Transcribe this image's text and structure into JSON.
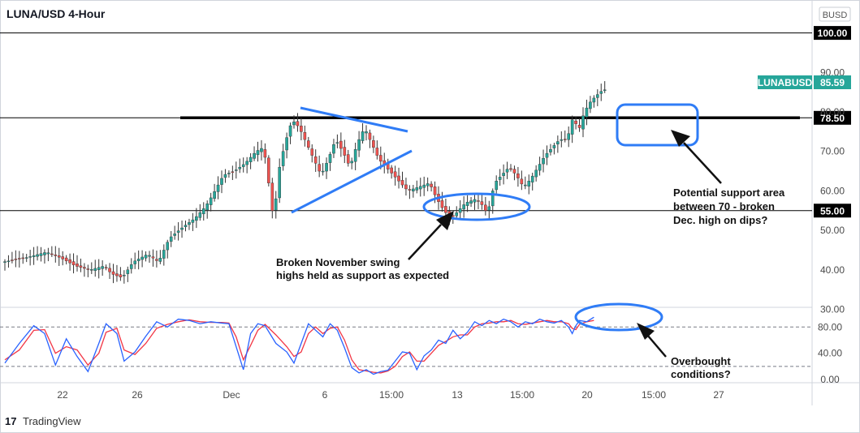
{
  "chart_data": {
    "type": "candlestick",
    "title": "LUNA/USD 4-Hour",
    "currency": "BUSD",
    "ticker": "LUNABUSD",
    "last_price": "85.59",
    "price_axis": {
      "ticks": [
        "100.00",
        "90.00",
        "80.00",
        "70.00",
        "60.00",
        "50.00",
        "40.00",
        "30.00"
      ],
      "ylim": [
        28,
        104
      ]
    },
    "time_axis": {
      "ticks": [
        "22",
        "26",
        "Dec",
        "6",
        "15:00",
        "13",
        "15:00",
        "20",
        "15:00",
        "27"
      ]
    },
    "levels": [
      {
        "value": 100,
        "label": "100.00",
        "label_color": "#000000"
      },
      {
        "value": 78.5,
        "label": "78.50",
        "label_color": "#000000"
      },
      {
        "value": 55,
        "label": "55.00",
        "label_color": "#000000"
      }
    ],
    "price_path": [
      [
        0,
        42
      ],
      [
        6,
        43
      ],
      [
        12,
        44.5
      ],
      [
        16,
        43
      ],
      [
        20,
        41
      ],
      [
        24,
        40
      ],
      [
        28,
        41
      ],
      [
        30,
        39
      ],
      [
        33,
        38
      ],
      [
        36,
        42
      ],
      [
        40,
        44
      ],
      [
        43,
        42
      ],
      [
        46,
        48
      ],
      [
        50,
        51
      ],
      [
        53,
        53
      ],
      [
        56,
        56
      ],
      [
        58,
        59
      ],
      [
        61,
        64
      ],
      [
        64,
        65
      ],
      [
        67,
        67
      ],
      [
        70,
        70
      ],
      [
        72,
        71
      ],
      [
        73,
        66
      ],
      [
        74,
        58
      ],
      [
        75,
        52
      ],
      [
        76,
        64
      ],
      [
        78,
        72
      ],
      [
        80,
        78
      ],
      [
        82,
        76
      ],
      [
        84,
        72
      ],
      [
        86,
        68
      ],
      [
        88,
        64
      ],
      [
        90,
        68
      ],
      [
        92,
        73
      ],
      [
        94,
        70
      ],
      [
        96,
        66
      ],
      [
        98,
        72
      ],
      [
        100,
        76
      ],
      [
        102,
        72
      ],
      [
        104,
        68
      ],
      [
        106,
        66
      ],
      [
        108,
        64
      ],
      [
        110,
        62
      ],
      [
        112,
        60
      ],
      [
        115,
        61
      ],
      [
        118,
        62
      ],
      [
        120,
        58
      ],
      [
        122,
        55
      ],
      [
        124,
        53
      ],
      [
        126,
        55
      ],
      [
        128,
        57
      ],
      [
        131,
        58
      ],
      [
        133,
        56
      ],
      [
        134,
        54
      ],
      [
        136,
        62
      ],
      [
        138,
        64
      ],
      [
        140,
        66
      ],
      [
        142,
        64
      ],
      [
        144,
        61
      ],
      [
        146,
        63
      ],
      [
        148,
        66
      ],
      [
        150,
        69
      ],
      [
        152,
        71
      ],
      [
        154,
        73
      ],
      [
        156,
        73
      ],
      [
        157,
        76
      ],
      [
        158,
        80
      ],
      [
        159,
        74
      ],
      [
        160,
        78
      ],
      [
        162,
        82
      ],
      [
        164,
        84
      ],
      [
        166,
        85.59
      ]
    ],
    "stoch_axis": {
      "ticks": [
        "80.00",
        "40.00",
        "0.00"
      ],
      "ylim": [
        -2,
        100
      ],
      "bands": [
        80,
        20
      ]
    },
    "stoch_k": [
      [
        0,
        25
      ],
      [
        4,
        55
      ],
      [
        8,
        82
      ],
      [
        11,
        70
      ],
      [
        14,
        22
      ],
      [
        17,
        62
      ],
      [
        20,
        35
      ],
      [
        23,
        12
      ],
      [
        26,
        55
      ],
      [
        28,
        85
      ],
      [
        31,
        70
      ],
      [
        33,
        28
      ],
      [
        36,
        42
      ],
      [
        39,
        66
      ],
      [
        42,
        88
      ],
      [
        45,
        80
      ],
      [
        48,
        92
      ],
      [
        51,
        90
      ],
      [
        54,
        85
      ],
      [
        57,
        88
      ],
      [
        60,
        86
      ],
      [
        62,
        85
      ],
      [
        64,
        50
      ],
      [
        66,
        15
      ],
      [
        68,
        70
      ],
      [
        70,
        85
      ],
      [
        72,
        82
      ],
      [
        75,
        55
      ],
      [
        78,
        42
      ],
      [
        80,
        25
      ],
      [
        82,
        55
      ],
      [
        84,
        85
      ],
      [
        86,
        75
      ],
      [
        88,
        65
      ],
      [
        90,
        85
      ],
      [
        92,
        75
      ],
      [
        94,
        48
      ],
      [
        96,
        18
      ],
      [
        98,
        10
      ],
      [
        100,
        15
      ],
      [
        102,
        8
      ],
      [
        104,
        12
      ],
      [
        106,
        14
      ],
      [
        108,
        28
      ],
      [
        110,
        42
      ],
      [
        112,
        40
      ],
      [
        114,
        15
      ],
      [
        116,
        36
      ],
      [
        118,
        45
      ],
      [
        120,
        60
      ],
      [
        122,
        55
      ],
      [
        124,
        75
      ],
      [
        126,
        62
      ],
      [
        128,
        72
      ],
      [
        130,
        88
      ],
      [
        132,
        82
      ],
      [
        134,
        90
      ],
      [
        136,
        85
      ],
      [
        138,
        92
      ],
      [
        140,
        88
      ],
      [
        142,
        80
      ],
      [
        144,
        88
      ],
      [
        146,
        85
      ],
      [
        148,
        92
      ],
      [
        150,
        88
      ],
      [
        152,
        86
      ],
      [
        154,
        90
      ],
      [
        156,
        80
      ],
      [
        157,
        70
      ],
      [
        158,
        82
      ],
      [
        159,
        90
      ],
      [
        161,
        88
      ],
      [
        163,
        95
      ]
    ],
    "stoch_d": [
      [
        0,
        30
      ],
      [
        4,
        45
      ],
      [
        8,
        75
      ],
      [
        11,
        76
      ],
      [
        14,
        40
      ],
      [
        17,
        50
      ],
      [
        20,
        45
      ],
      [
        23,
        22
      ],
      [
        26,
        40
      ],
      [
        28,
        72
      ],
      [
        31,
        78
      ],
      [
        33,
        45
      ],
      [
        36,
        38
      ],
      [
        39,
        55
      ],
      [
        42,
        78
      ],
      [
        45,
        84
      ],
      [
        48,
        88
      ],
      [
        51,
        91
      ],
      [
        54,
        88
      ],
      [
        57,
        87
      ],
      [
        60,
        87
      ],
      [
        62,
        86
      ],
      [
        64,
        65
      ],
      [
        66,
        30
      ],
      [
        68,
        52
      ],
      [
        70,
        75
      ],
      [
        72,
        84
      ],
      [
        75,
        68
      ],
      [
        78,
        50
      ],
      [
        80,
        35
      ],
      [
        82,
        42
      ],
      [
        84,
        70
      ],
      [
        86,
        80
      ],
      [
        88,
        70
      ],
      [
        90,
        78
      ],
      [
        92,
        80
      ],
      [
        94,
        60
      ],
      [
        96,
        30
      ],
      [
        98,
        15
      ],
      [
        100,
        13
      ],
      [
        102,
        11
      ],
      [
        104,
        10
      ],
      [
        106,
        13
      ],
      [
        108,
        20
      ],
      [
        110,
        35
      ],
      [
        112,
        42
      ],
      [
        114,
        28
      ],
      [
        116,
        28
      ],
      [
        118,
        40
      ],
      [
        120,
        52
      ],
      [
        122,
        58
      ],
      [
        124,
        65
      ],
      [
        126,
        68
      ],
      [
        128,
        68
      ],
      [
        130,
        80
      ],
      [
        132,
        85
      ],
      [
        134,
        86
      ],
      [
        136,
        88
      ],
      [
        138,
        88
      ],
      [
        140,
        90
      ],
      [
        142,
        85
      ],
      [
        144,
        84
      ],
      [
        146,
        86
      ],
      [
        148,
        88
      ],
      [
        150,
        90
      ],
      [
        152,
        88
      ],
      [
        154,
        88
      ],
      [
        156,
        85
      ],
      [
        157,
        78
      ],
      [
        158,
        76
      ],
      [
        159,
        84
      ],
      [
        161,
        88
      ],
      [
        163,
        90
      ]
    ],
    "annotations": [
      {
        "name": "support-area",
        "lines": [
          "Potential support area",
          "between 70 - broken",
          "Dec. high on dips?"
        ]
      },
      {
        "name": "broken-swing",
        "lines": [
          "Broken November swing",
          "highs held as support as expected"
        ]
      },
      {
        "name": "overbought",
        "lines": [
          "Overbought",
          "conditions?"
        ]
      }
    ],
    "colors": {
      "up": "#26a69a",
      "down": "#ef5350",
      "stoch_k": "#2962ff",
      "stoch_d": "#f23645",
      "drawing": "#2f7cf6",
      "badge": "#26a69a"
    }
  },
  "footer": {
    "brand": "TradingView"
  }
}
